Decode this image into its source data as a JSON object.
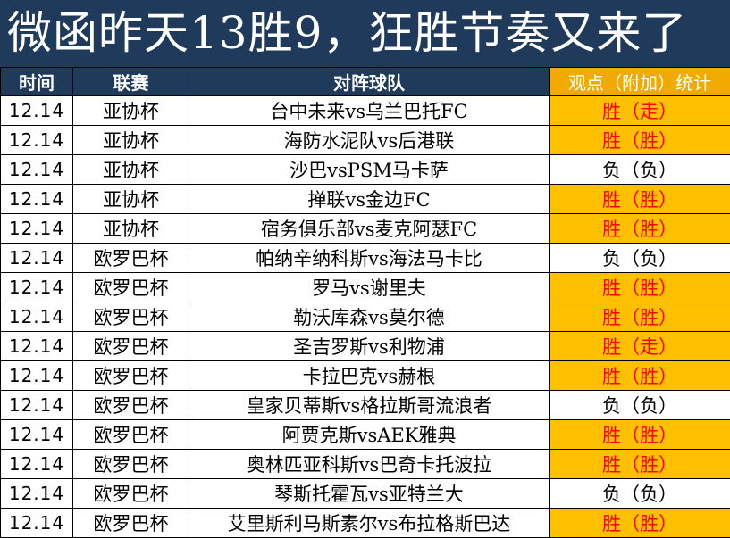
{
  "title": "微函昨天13胜9，狂胜节奏又来了",
  "headers": {
    "time": "时间",
    "league": "联赛",
    "match": "对阵球队",
    "stat": "观点（附加）统计"
  },
  "colors": {
    "banner_bg": "#1f3a5a",
    "header_bg": "#1f3a5a",
    "stat_header_bg": "#f2a900",
    "win_bg": "#ffc000",
    "win_text": "#ff0000",
    "loss_bg": "#ffffff"
  },
  "rows": [
    {
      "date": "12.14",
      "league": "亚协杯",
      "match": "台中未来vs乌兰巴托FC",
      "result": "胜（走）",
      "status": "win"
    },
    {
      "date": "12.14",
      "league": "亚协杯",
      "match": "海防水泥队vs后港联",
      "result": "胜（胜）",
      "status": "win"
    },
    {
      "date": "12.14",
      "league": "亚协杯",
      "match": "沙巴vsPSM马卡萨",
      "result": "负（负）",
      "status": "loss"
    },
    {
      "date": "12.14",
      "league": "亚协杯",
      "match": "掸联vs金边FC",
      "result": "胜（胜）",
      "status": "win"
    },
    {
      "date": "12.14",
      "league": "亚协杯",
      "match": "宿务俱乐部vs麦克阿瑟FC",
      "result": "胜（胜）",
      "status": "win"
    },
    {
      "date": "12.14",
      "league": "欧罗巴杯",
      "match": "帕纳辛纳科斯vs海法马卡比",
      "result": "负（负）",
      "status": "loss"
    },
    {
      "date": "12.14",
      "league": "欧罗巴杯",
      "match": "罗马vs谢里夫",
      "result": "胜（胜）",
      "status": "win"
    },
    {
      "date": "12.14",
      "league": "欧罗巴杯",
      "match": "勒沃库森vs莫尔德",
      "result": "胜（胜）",
      "status": "win"
    },
    {
      "date": "12.14",
      "league": "欧罗巴杯",
      "match": "圣吉罗斯vs利物浦",
      "result": "胜（走）",
      "status": "win"
    },
    {
      "date": "12.14",
      "league": "欧罗巴杯",
      "match": "卡拉巴克vs赫根",
      "result": "胜（胜）",
      "status": "win"
    },
    {
      "date": "12.14",
      "league": "欧罗巴杯",
      "match": "皇家贝蒂斯vs格拉斯哥流浪者",
      "result": "负（负）",
      "status": "loss"
    },
    {
      "date": "12.14",
      "league": "欧罗巴杯",
      "match": "阿贾克斯vsAEK雅典",
      "result": "胜（胜）",
      "status": "win"
    },
    {
      "date": "12.14",
      "league": "欧罗巴杯",
      "match": "奥林匹亚科斯vs巴奇卡托波拉",
      "result": "胜（胜）",
      "status": "win"
    },
    {
      "date": "12.14",
      "league": "欧罗巴杯",
      "match": "琴斯托霍瓦vs亚特兰大",
      "result": "负（负）",
      "status": "loss"
    },
    {
      "date": "12.14",
      "league": "欧罗巴杯",
      "match": "艾里斯利马斯素尔vs布拉格斯巴达",
      "result": "胜（胜）",
      "status": "win"
    }
  ]
}
